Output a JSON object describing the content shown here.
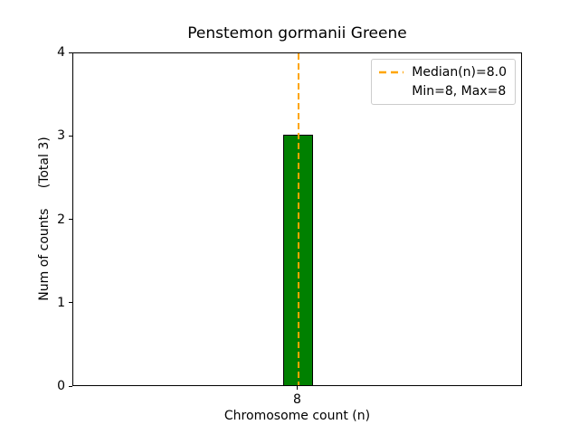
{
  "title": "Penstemon gormanii Greene",
  "axes": {
    "xlabel": "Chromosome count (n)",
    "ylabel": "Num of counts     (Total 3)"
  },
  "legend": {
    "items": [
      {
        "label": "Median(n)=8.0",
        "handle": "orange-dashed-line"
      },
      {
        "label": "Min=8, Max=8",
        "handle": "none"
      }
    ]
  },
  "colors": {
    "bar_fill": "#008000",
    "bar_edge": "#000000",
    "median_line": "#FFA500",
    "legend_border": "#cccccc",
    "text": "#000000"
  },
  "chart_data": {
    "type": "bar",
    "title": "Penstemon gormanii Greene",
    "xlabel": "Chromosome count (n)",
    "ylabel": "Num of counts     (Total 3)",
    "categories": [
      8
    ],
    "values": [
      3
    ],
    "total_counts": 3,
    "bar_width_data": 0.8,
    "xticks": [
      8
    ],
    "yticks": [
      0,
      1,
      2,
      3,
      4
    ],
    "xlim": [
      1.8,
      14.2
    ],
    "ylim": [
      0,
      4
    ],
    "bar_color": "#008000",
    "bar_edge_color": "#000000",
    "median_line": {
      "x": 8.0,
      "color": "#FFA500",
      "style": "dashed",
      "label": "Median(n)=8.0"
    },
    "annotations": [
      "Median(n)=8.0",
      "Min=8, Max=8"
    ],
    "legend_position": "upper right",
    "grid": false
  }
}
